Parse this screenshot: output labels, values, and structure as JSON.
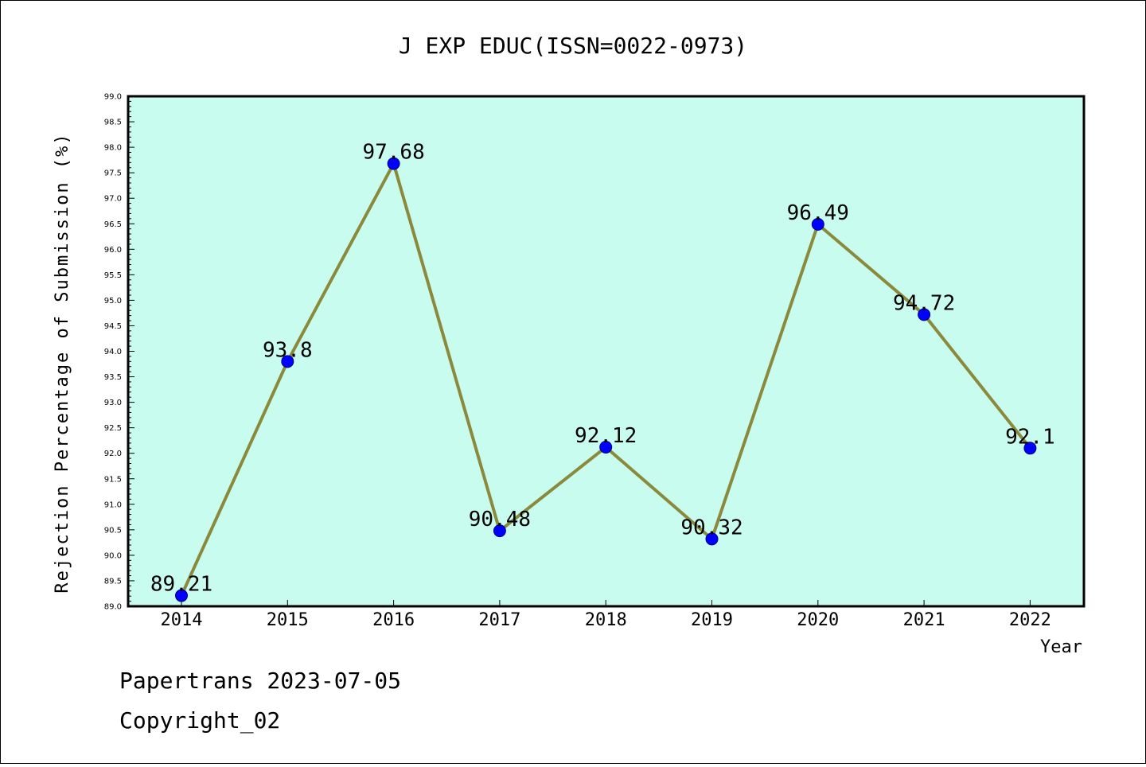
{
  "chart_data": {
    "type": "line",
    "title": "J EXP EDUC(ISSN=0022-0973)",
    "xlabel": "Year",
    "ylabel": "Rejection Percentage of Submission (%)",
    "categories": [
      "2014",
      "2015",
      "2016",
      "2017",
      "2018",
      "2019",
      "2020",
      "2021",
      "2022"
    ],
    "values": [
      89.21,
      93.8,
      97.68,
      90.48,
      92.12,
      90.32,
      96.49,
      94.72,
      92.1
    ],
    "data_labels": [
      "89.21",
      "93.8",
      "97.68",
      "90.48",
      "92.12",
      "90.32",
      "96.49",
      "94.72",
      "92.1"
    ],
    "ylim": [
      89.0,
      99.0
    ],
    "yticks": [
      "89.0",
      "89.5",
      "90.0",
      "90.5",
      "91.0",
      "91.5",
      "92.0",
      "92.5",
      "93.0",
      "93.5",
      "94.0",
      "94.5",
      "95.0",
      "95.5",
      "96.0",
      "96.5",
      "97.0",
      "97.5",
      "98.0",
      "98.5",
      "99.0"
    ],
    "grid": false,
    "colors": {
      "plot_background": "#c8fcee",
      "line": "#8b8a3c",
      "marker": "#0000ff"
    }
  },
  "footer": {
    "line1": "Papertrans 2023-07-05",
    "line2": "Copyright_02"
  }
}
